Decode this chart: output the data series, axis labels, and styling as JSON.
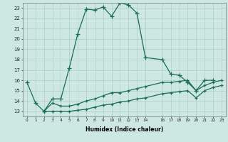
{
  "xlabel": "Humidex (Indice chaleur)",
  "bg_color": "#cce8e0",
  "line_color": "#1a6b5a",
  "grid_color": "#b0ccc8",
  "ylim": [
    12.5,
    23.5
  ],
  "xlim": [
    -0.5,
    23.5
  ],
  "yticks": [
    13,
    14,
    15,
    16,
    17,
    18,
    19,
    20,
    21,
    22,
    23
  ],
  "xtick_positions": [
    0,
    1,
    2,
    3,
    4,
    5,
    6,
    7,
    8,
    9,
    10,
    11,
    12,
    13,
    14,
    16,
    17,
    18,
    19,
    20,
    21,
    22,
    23
  ],
  "xtick_labels": [
    "0",
    "1",
    "2",
    "3",
    "4",
    "5",
    "6",
    "7",
    "8",
    "9",
    "10",
    "11",
    "12",
    "13",
    "14",
    "16",
    "17",
    "18",
    "19",
    "20",
    "21",
    "22",
    "23"
  ],
  "series1_x": [
    0,
    1,
    2,
    3,
    4,
    5,
    6,
    7,
    8,
    9,
    10,
    11,
    12,
    13,
    14,
    16,
    17,
    18,
    19,
    20,
    21,
    22
  ],
  "series1_y": [
    15.8,
    13.8,
    13.0,
    14.2,
    14.2,
    17.2,
    20.5,
    22.9,
    22.8,
    23.1,
    22.2,
    23.5,
    23.3,
    22.5,
    18.2,
    18.0,
    16.6,
    16.5,
    15.8,
    15.0,
    16.0,
    16.0
  ],
  "series2_x": [
    2,
    3,
    4,
    5,
    6,
    7,
    8,
    9,
    10,
    11,
    12,
    13,
    14,
    16,
    17,
    18,
    19,
    20,
    21,
    22,
    23
  ],
  "series2_y": [
    13.0,
    13.8,
    13.5,
    13.5,
    13.7,
    14.0,
    14.2,
    14.5,
    14.8,
    14.8,
    15.0,
    15.2,
    15.4,
    15.8,
    15.8,
    15.9,
    16.0,
    15.0,
    15.5,
    15.8,
    16.0
  ],
  "series3_x": [
    2,
    3,
    4,
    5,
    6,
    7,
    8,
    9,
    10,
    11,
    12,
    13,
    14,
    16,
    17,
    18,
    19,
    20,
    21,
    22,
    23
  ],
  "series3_y": [
    13.0,
    13.0,
    13.0,
    13.0,
    13.1,
    13.2,
    13.4,
    13.6,
    13.7,
    13.9,
    14.0,
    14.2,
    14.3,
    14.7,
    14.8,
    14.9,
    15.0,
    14.3,
    15.0,
    15.3,
    15.5
  ]
}
